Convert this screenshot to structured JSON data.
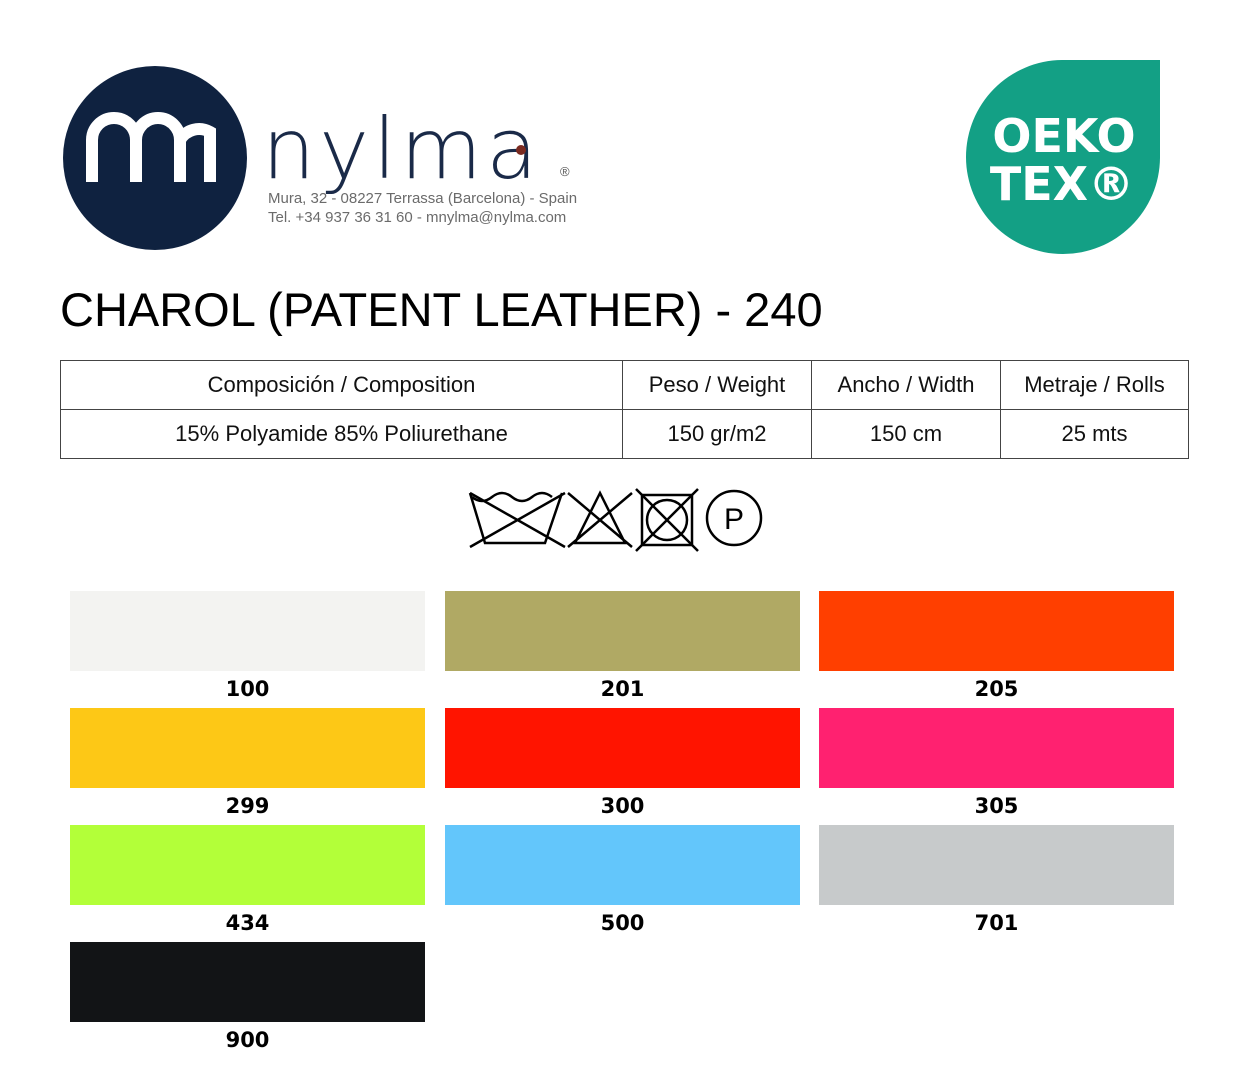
{
  "header": {
    "brand": "nylma",
    "registered": "®",
    "address": "Mura, 32 - 08227 Terrassa (Barcelona) - Spain",
    "contact": "Tel. +34 937 36 31 60 - mnylma@nylma.com",
    "badge": [
      "OEKO",
      "TEX®"
    ]
  },
  "title": "CHAROL (PATENT LEATHER) - 240",
  "table": {
    "headers": [
      "Composición / Composition",
      "Peso / Weight",
      "Ancho / Width",
      "Metraje / Rolls"
    ],
    "rows": [
      [
        "15% Polyamide 85% Poliurethane",
        "150 gr/m2",
        "150 cm",
        "25 mts"
      ]
    ]
  },
  "care_symbols": {
    "dryclean": "P"
  },
  "swatches": [
    {
      "code": "100",
      "color": "#f3f3f1"
    },
    {
      "code": "201",
      "color": "#b0a964"
    },
    {
      "code": "205",
      "color": "#ff3f00"
    },
    {
      "code": "299",
      "color": "#fdc816"
    },
    {
      "code": "300",
      "color": "#ff1400"
    },
    {
      "code": "305",
      "color": "#ff2170"
    },
    {
      "code": "434",
      "color": "#b3ff39"
    },
    {
      "code": "500",
      "color": "#63c6fb"
    },
    {
      "code": "701",
      "color": "#c7cacb"
    },
    {
      "code": "900",
      "color": "#121416"
    }
  ]
}
